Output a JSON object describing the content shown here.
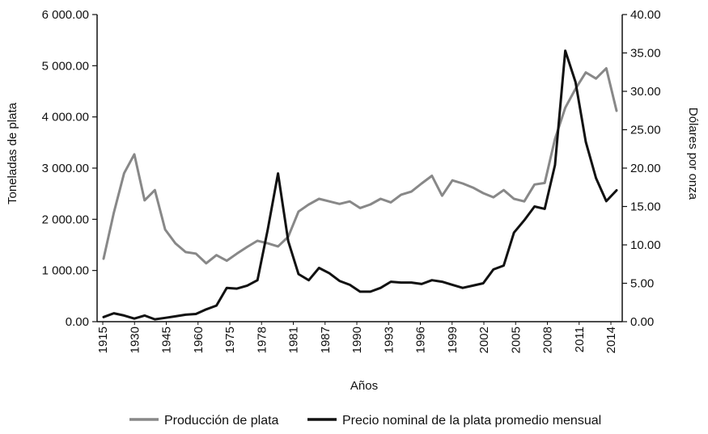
{
  "chart_data": {
    "type": "line",
    "xlabel": "Años",
    "ylabel_left": "Toneladas de plata",
    "ylabel_right": "Dólares por onza",
    "ylim_left": [
      0,
      6000
    ],
    "ylim_right": [
      0,
      40
    ],
    "left_ticks": [
      "0.00",
      "1 000.00",
      "2 000.00",
      "3 000.00",
      "4 000.00",
      "5 000.00",
      "6 000.00"
    ],
    "right_ticks": [
      "0.00",
      "5.00",
      "10.00",
      "15.00",
      "20.00",
      "25.00",
      "30.00",
      "35.00",
      "40.00"
    ],
    "x_tick_labels": [
      "1915",
      "1930",
      "1945",
      "1960",
      "1975",
      "1978",
      "1981",
      "1987",
      "1990",
      "1993",
      "1996",
      "1999",
      "2002",
      "2005",
      "2008",
      "2011",
      "2014"
    ],
    "grid": false,
    "legend_position": "bottom",
    "series": [
      {
        "name": "Producción de plata",
        "axis": "left",
        "color": "#888888",
        "values": [
          1230,
          2130,
          2900,
          3270,
          2370,
          2570,
          1800,
          1530,
          1360,
          1330,
          1140,
          1300,
          1190,
          1330,
          1460,
          1580,
          1530,
          1470,
          1660,
          2150,
          2290,
          2400,
          2350,
          2300,
          2350,
          2220,
          2290,
          2400,
          2330,
          2480,
          2540,
          2700,
          2850,
          2460,
          2760,
          2700,
          2620,
          2510,
          2430,
          2570,
          2400,
          2350,
          2680,
          2710,
          3570,
          4180,
          4550,
          4870,
          4750,
          4950,
          4120
        ]
      },
      {
        "name": "Precio nominal de la plata promedio mensual",
        "axis": "right",
        "color": "#111111",
        "values": [
          0.6,
          1.1,
          0.8,
          0.4,
          0.8,
          0.3,
          0.5,
          0.7,
          0.9,
          1.0,
          1.6,
          2.1,
          4.4,
          4.3,
          4.7,
          5.4,
          12.0,
          19.3,
          10.5,
          6.2,
          5.4,
          7.0,
          6.3,
          5.3,
          4.8,
          3.9,
          3.9,
          4.4,
          5.2,
          5.1,
          5.1,
          4.9,
          5.4,
          5.2,
          4.8,
          4.4,
          4.7,
          5.0,
          6.8,
          7.3,
          11.6,
          13.2,
          15.0,
          14.7,
          20.4,
          35.3,
          31.2,
          23.4,
          18.7,
          15.7,
          17.1
        ]
      }
    ]
  }
}
